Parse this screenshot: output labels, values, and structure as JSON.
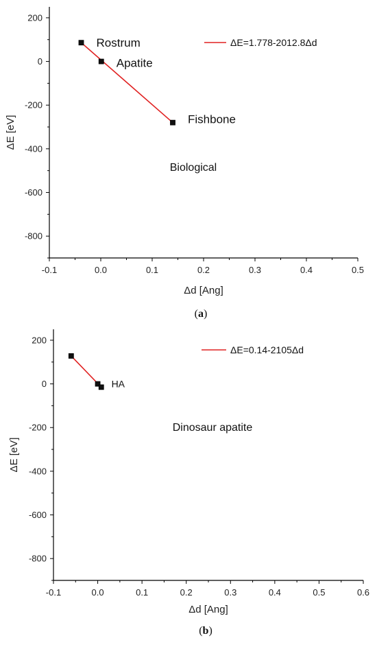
{
  "chart_data": [
    {
      "type": "scatter",
      "caption_letter": "a",
      "xlabel": "Δd [Ang]",
      "ylabel": "ΔE [eV]",
      "xlim": [
        -0.1,
        0.5
      ],
      "ylim": [
        -900,
        250
      ],
      "xticks": [
        -0.1,
        0.0,
        0.1,
        0.2,
        0.3,
        0.4,
        0.5
      ],
      "xtick_labels": [
        "-0.1",
        "0.0",
        "0.1",
        "0.2",
        "0.3",
        "0.4",
        "0.5"
      ],
      "yticks": [
        200,
        0,
        -200,
        -400,
        -600,
        -800
      ],
      "ytick_labels": [
        "200",
        "0",
        "-200",
        "-400",
        "-600",
        "-800"
      ],
      "points": [
        {
          "x": -0.038,
          "y": 86,
          "label": "Rostrum"
        },
        {
          "x": 0.001,
          "y": 0,
          "label": "Apatite"
        },
        {
          "x": 0.14,
          "y": -280,
          "label": "Fishbone"
        }
      ],
      "fit": {
        "x": [
          -0.038,
          0.14
        ],
        "y": [
          86,
          -280
        ],
        "color": "#e02020"
      },
      "legend": {
        "text": "ΔE=1.778-2012.8Δd",
        "placement": "top-right"
      },
      "annotation": "Biological",
      "grid": false
    },
    {
      "type": "scatter",
      "caption_letter": "b",
      "xlabel": "Δd [Ang]",
      "ylabel": "ΔE [eV]",
      "xlim": [
        -0.1,
        0.6
      ],
      "ylim": [
        -900,
        250
      ],
      "xticks": [
        -0.1,
        0.0,
        0.1,
        0.2,
        0.3,
        0.4,
        0.5,
        0.6
      ],
      "xtick_labels": [
        "-0.1",
        "0.0",
        "0.1",
        "0.2",
        "0.3",
        "0.4",
        "0.5",
        "0.6"
      ],
      "yticks": [
        200,
        0,
        -200,
        -400,
        -600,
        -800
      ],
      "ytick_labels": [
        "200",
        "0",
        "-200",
        "-400",
        "-600",
        "-800"
      ],
      "points": [
        {
          "x": -0.06,
          "y": 128,
          "label": ""
        },
        {
          "x": 0.0,
          "y": 0,
          "label": "HA"
        },
        {
          "x": 0.008,
          "y": -15,
          "label": ""
        }
      ],
      "fit": {
        "x": [
          -0.06,
          0.008
        ],
        "y": [
          128,
          -15
        ],
        "color": "#e02020"
      },
      "legend": {
        "text": "ΔE=0.14-2105Δd",
        "placement": "top-right"
      },
      "annotation": "Dinosaur apatite",
      "grid": false
    }
  ]
}
